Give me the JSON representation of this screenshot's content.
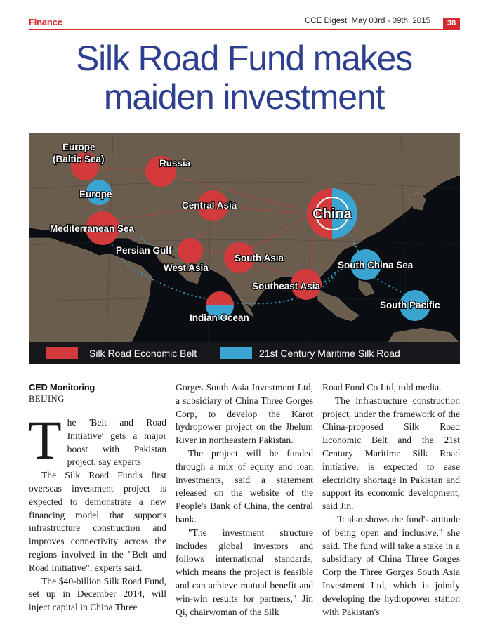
{
  "header": {
    "section": "Finance",
    "issue": "CCE Digest  May 03rd - 09th, 2015",
    "page_number": "38"
  },
  "headline": {
    "line1": "Silk Road Fund makes",
    "line2": "maiden investment"
  },
  "map": {
    "labels": {
      "europe_baltic_1": "Europe",
      "europe_baltic_2": "(Baltic Sea)",
      "russia": "Russia",
      "europe": "Europe",
      "central_asia": "Central Asia",
      "china": "China",
      "mediterranean": "Mediterranean Sea",
      "persian_gulf": "Persian Gulf",
      "west_asia": "West Asia",
      "south_asia": "South Asia",
      "south_china_sea": "South China Sea",
      "southeast_asia": "Southeast Asia",
      "south_pacific": "South Pacific",
      "indian_ocean": "Indian Ocean"
    },
    "legend": {
      "land": "Silk Road Economic Belt",
      "sea": "21st Century Maritime Silk Road"
    },
    "colors": {
      "land": "#d33a3c",
      "sea": "#3aa3cf",
      "ocean": "#0a0d12",
      "continent": "#6b5d4e"
    }
  },
  "article": {
    "byline": "CED Monitoring",
    "dateline": "BEIJING",
    "dropcap": "T",
    "deck": "he 'Belt and Road Initiative' gets a major boost with Pakistan project, say experts",
    "col1_p1": "The Silk Road Fund's first overseas investment project is expected to demonstrate a new financing model that supports infrastructure construction and improves connectivity across the regions involved in the \"Belt and Road Initiative\", experts said.",
    "col1_p2": "The $40-billion Silk Road Fund, set up in December 2014, will inject capital in China Three",
    "col2_p1": "Gorges South Asia Investment Ltd, a subsidiary of China Three Gorges Corp, to develop the Karot hydropower project on the Jhelum River in northeastern Pakistan.",
    "col2_p2": "The project will be funded through a mix of equity and loan investments, said a statement released on the website of the People's Bank of China, the central bank.",
    "col2_p3": "\"The investment structure includes global investors and follows international standards, which means the project is feasible and can achieve mutual benefit and win-win results for partners,\" Jin Qi, chairwoman of the Silk",
    "col3_p1": "Road Fund Co Ltd, told media.",
    "col3_p2": "The infrastructure construction project, under the framework of the China-proposed Silk Road Economic Belt and the 21st Century Maritime Silk Road initiative, is expected to ease electricity shortage in Pakistan and support its economic development, said Jin.",
    "col3_p3": "\"It also shows the fund's attitude of being open and inclusive,\" she said. The fund will take a stake in a subsidiary of China Three Gorges Corp the Three Gorges South Asia Investment Ltd, which is jointly developing the hydropower station with Pakistan's"
  }
}
